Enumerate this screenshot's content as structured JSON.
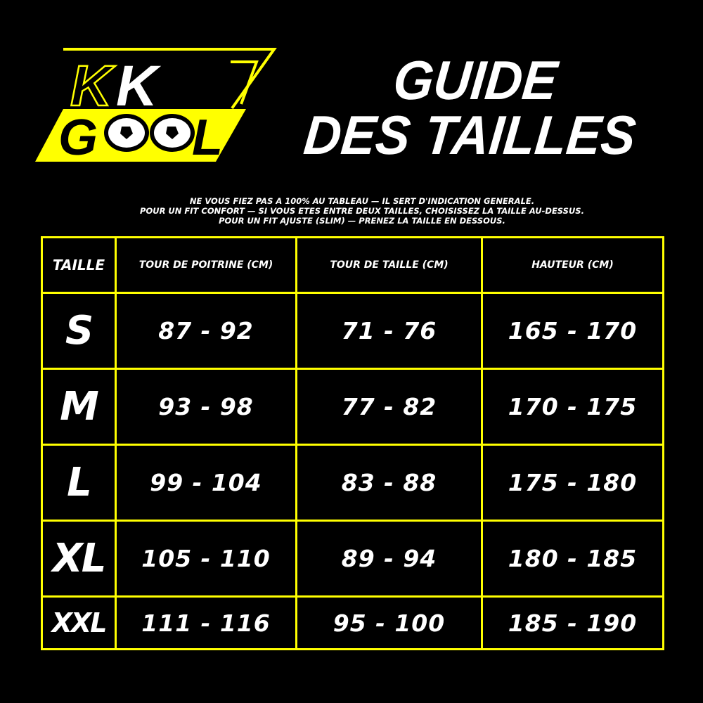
{
  "logo": {
    "text_top": "KK",
    "text_bottom": "GOOL",
    "accent_color": "#ffff00"
  },
  "title": {
    "line1": "GUIDE",
    "line2": "DES TAILLES"
  },
  "notes": [
    "NE VOUS FIEZ PAS A 100% AU TABLEAU — IL SERT D'INDICATION GENERALE.",
    "POUR UN FIT CONFORT — SI VOUS ETES ENTRE DEUX TAILLES, CHOISISSEZ LA TAILLE AU-DESSUS.",
    "POUR UN FIT AJUSTE (SLIM) — PRENEZ LA TAILLE EN DESSOUS."
  ],
  "table": {
    "headers": [
      "TAILLE",
      "TOUR DE POITRINE (CM)",
      "TOUR DE TAILLE (CM)",
      "HAUTEUR (CM)"
    ],
    "rows": [
      [
        "S",
        "87 - 92",
        "71 - 76",
        "165 - 170"
      ],
      [
        "M",
        "93 - 98",
        "77 - 82",
        "170 - 175"
      ],
      [
        "L",
        "99 - 104",
        "83 - 88",
        "175 - 180"
      ],
      [
        "XL",
        "105 - 110",
        "89 - 94",
        "180 - 185"
      ],
      [
        "XXL",
        "111 - 116",
        "95 - 100",
        "185 - 190"
      ]
    ],
    "border_color": "#ffff00"
  }
}
